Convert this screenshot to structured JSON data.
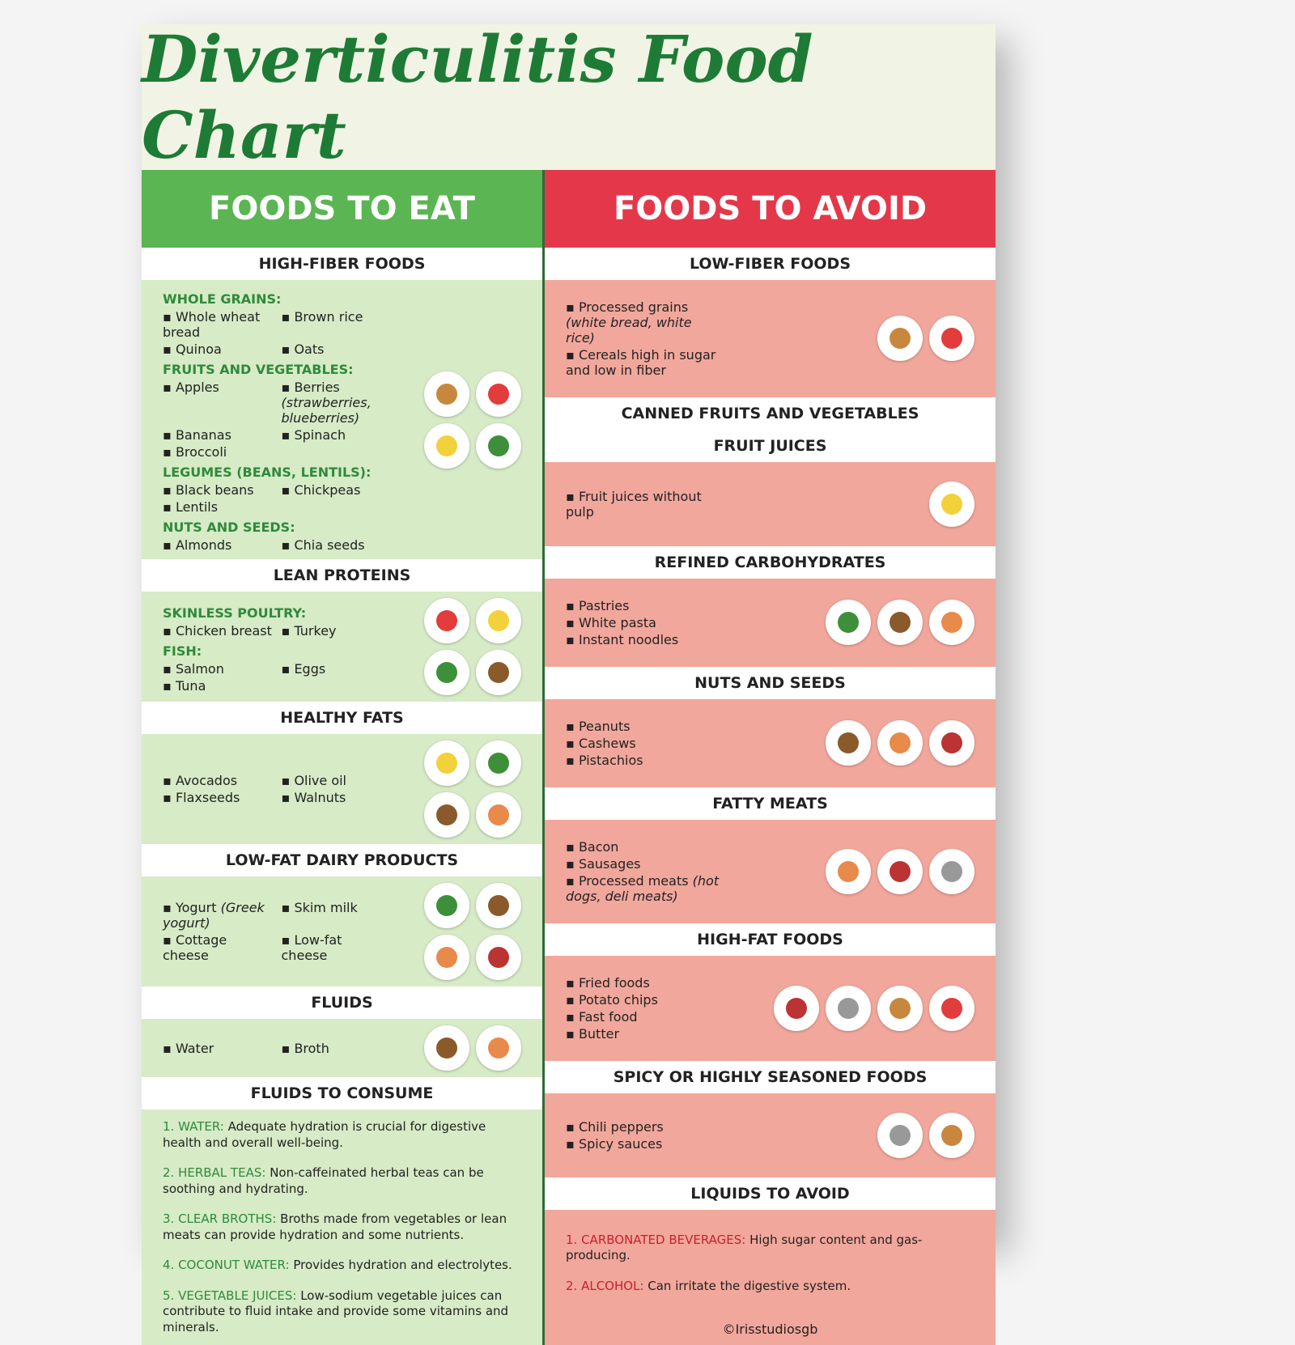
{
  "title": "Diverticulitis Food Chart",
  "eat": {
    "heading": "FOODS TO EAT",
    "sections": [
      {
        "heading": "HIGH-FIBER FOODS",
        "groups": [
          {
            "label": "WHOLE GRAINS:",
            "items": [
              "Whole wheat bread",
              "Brown rice",
              "Quinoa",
              "Oats"
            ]
          },
          {
            "label": "FRUITS AND VEGETABLES:",
            "items": [
              "Apples",
              {
                "text": "Berries",
                "note": "(strawberries, blueberries)"
              },
              "Bananas",
              "Spinach",
              "Broccoli"
            ]
          },
          {
            "label": "LEGUMES (BEANS, LENTILS):",
            "items": [
              "Black beans",
              "Chickpeas",
              "Lentils"
            ]
          },
          {
            "label": "NUTS AND SEEDS:",
            "items": [
              "Almonds",
              "Chia seeds"
            ]
          }
        ]
      },
      {
        "heading": "LEAN PROTEINS",
        "groups": [
          {
            "label": "SKINLESS POULTRY:",
            "items": [
              "Chicken breast",
              "Turkey"
            ]
          },
          {
            "label": "FISH:",
            "items": [
              "Salmon",
              "Eggs",
              "Tuna"
            ]
          }
        ]
      },
      {
        "heading": "HEALTHY FATS",
        "groups": [
          {
            "items": [
              "Avocados",
              "Olive oil",
              "Flaxseeds",
              "Walnuts"
            ]
          }
        ]
      },
      {
        "heading": "LOW-FAT DAIRY PRODUCTS",
        "groups": [
          {
            "items": [
              {
                "text": "Yogurt",
                "note": "(Greek yogurt)"
              },
              "Skim milk",
              "Cottage cheese",
              "Low-fat cheese"
            ]
          }
        ]
      },
      {
        "heading": "FLUIDS",
        "groups": [
          {
            "items": [
              "Water",
              "Broth"
            ]
          }
        ]
      },
      {
        "heading": "FLUIDS TO CONSUME",
        "list": [
          {
            "label": "1. WATER:",
            "text": "Adequate hydration is crucial for digestive health and overall well-being."
          },
          {
            "label": "2. HERBAL TEAS:",
            "text": "Non-caffeinated herbal teas can be soothing and hydrating."
          },
          {
            "label": "3. CLEAR BROTHS:",
            "text": "Broths made from vegetables or lean meats can provide hydration and some nutrients."
          },
          {
            "label": "4. COCONUT WATER:",
            "text": "Provides hydration and electrolytes."
          },
          {
            "label": "5. VEGETABLE JUICES:",
            "text": "Low-sodium vegetable juices can contribute to fluid intake and provide some vitamins and minerals."
          }
        ]
      }
    ]
  },
  "avoid": {
    "heading": "FOODS TO AVOID",
    "sections": [
      {
        "heading": "LOW-FIBER FOODS",
        "groups": [
          {
            "items": [
              {
                "text": "Processed grains",
                "note": "(white bread, white rice)"
              },
              "Cereals high in sugar and low in fiber"
            ]
          }
        ]
      },
      {
        "heading": "CANNED FRUITS AND VEGETABLES"
      },
      {
        "heading": "FRUIT JUICES",
        "groups": [
          {
            "items": [
              "Fruit juices without pulp"
            ]
          }
        ]
      },
      {
        "heading": "REFINED CARBOHYDRATES",
        "groups": [
          {
            "items": [
              "Pastries",
              "White pasta",
              "Instant noodles"
            ]
          }
        ]
      },
      {
        "heading": "NUTS AND SEEDS",
        "groups": [
          {
            "items": [
              "Peanuts",
              "Cashews",
              "Pistachios"
            ]
          }
        ]
      },
      {
        "heading": "FATTY MEATS",
        "groups": [
          {
            "items": [
              "Bacon",
              "Sausages",
              {
                "text": "Processed meats",
                "note": "(hot dogs, deli meats)"
              }
            ]
          }
        ]
      },
      {
        "heading": "HIGH-FAT FOODS",
        "groups": [
          {
            "items": [
              "Fried foods",
              "Potato chips",
              "Fast food",
              "Butter"
            ]
          }
        ]
      },
      {
        "heading": "SPICY OR HIGHLY SEASONED FOODS",
        "groups": [
          {
            "items": [
              "Chili peppers",
              "Spicy sauces"
            ]
          }
        ]
      },
      {
        "heading": "LIQUIDS TO AVOID",
        "list": [
          {
            "label": "1. CARBONATED BEVERAGES:",
            "text": "High sugar content and gas-producing."
          },
          {
            "label": "2. ALCOHOL:",
            "text": "Can irritate the digestive system."
          }
        ]
      }
    ]
  },
  "credit": "©Irisstudiosgb"
}
